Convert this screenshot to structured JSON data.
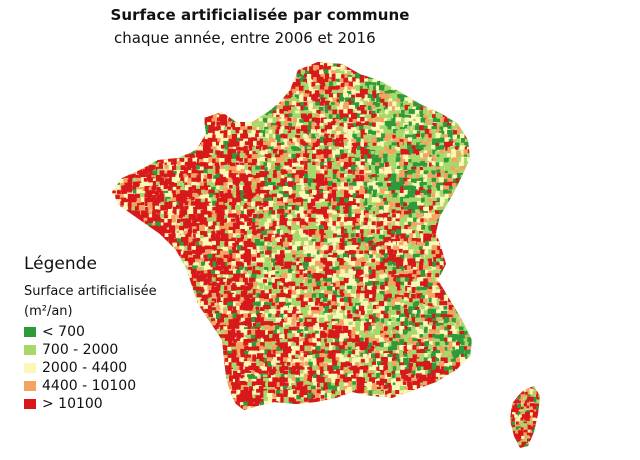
{
  "title": "Surface artificialisée par commune",
  "subtitle": "chaque année, entre 2006 et 2016",
  "legend": {
    "heading": "Légende",
    "variable": "Surface artificialisée",
    "unit": "(m²/an)",
    "classes": [
      {
        "label": "< 700",
        "color": "#2e9b3a"
      },
      {
        "label": "700 - 2000",
        "color": "#a6d86a"
      },
      {
        "label": "2000 - 4400",
        "color": "#fbf7b4"
      },
      {
        "label": "4400 - 10100",
        "color": "#f4a460"
      },
      {
        "label": "> 10100",
        "color": "#d7191c"
      }
    ]
  },
  "map": {
    "background_color": "#f0d8a8",
    "regions": [
      "France (métropole)",
      "Corse"
    ]
  }
}
